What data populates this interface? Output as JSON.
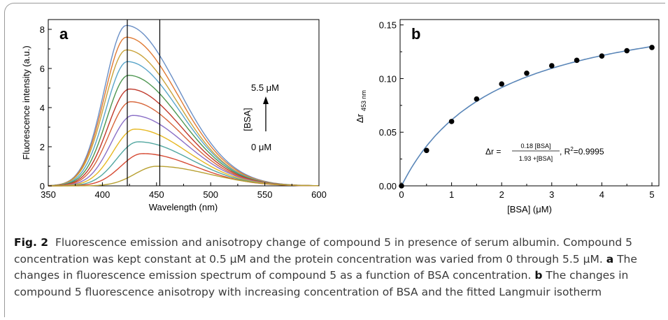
{
  "colors": {
    "fit_line": "#5a86b8",
    "marker": "#000000",
    "spectra": [
      "#6a8fc6",
      "#e07a33",
      "#c9a33a",
      "#5aa5c9",
      "#4d9650",
      "#c0392b",
      "#d7653a",
      "#8a6fc7",
      "#e6b822",
      "#52a7a0",
      "#d64a33",
      "#b8a031",
      "#5a82c0"
    ]
  },
  "charts": [
    {
      "panel_label": "a",
      "ylabel": "Fluorescence intensity (a.u.)",
      "xlabel": "Wavelength (nm)",
      "xticks": [
        "350",
        "400",
        "450",
        "500",
        "550",
        "600"
      ],
      "yticks": [
        "0",
        "2",
        "4",
        "6",
        "8"
      ],
      "annotation": {
        "top": "5.5 μM",
        "middle": "[BSA]",
        "bottom": "0 μM"
      }
    },
    {
      "panel_label": "b",
      "ylabel": "Δr",
      "ylabel_sub": "453 nm",
      "xlabel": "[BSA] (μM)",
      "xticks": [
        "0",
        "1",
        "2",
        "3",
        "4",
        "5"
      ],
      "yticks": [
        "0.00",
        "0.05",
        "0.10",
        "0.15"
      ],
      "equation": {
        "lhs": "Δr =",
        "numerator": "0.18 [BSA]",
        "denominator": "1.93 +[BSA]",
        "r2_label": ", R",
        "r2_sup": "2",
        "r2_value": "=0.9995"
      }
    }
  ],
  "chart_data": [
    {
      "type": "line",
      "xlim": [
        350,
        600
      ],
      "ylim": [
        0,
        8.5
      ],
      "x": [
        350,
        360,
        370,
        380,
        390,
        400,
        410,
        420,
        430,
        440,
        450,
        460,
        470,
        480,
        490,
        500,
        520,
        540,
        560,
        580,
        600
      ],
      "vertical_lines_x": [
        423,
        453
      ],
      "series": [
        {
          "peak_x": 422,
          "peak_y": 8.2
        },
        {
          "peak_x": 422,
          "peak_y": 7.6
        },
        {
          "peak_x": 422,
          "peak_y": 6.95
        },
        {
          "peak_x": 423,
          "peak_y": 6.35
        },
        {
          "peak_x": 424,
          "peak_y": 5.65
        },
        {
          "peak_x": 425,
          "peak_y": 4.95
        },
        {
          "peak_x": 426,
          "peak_y": 4.3
        },
        {
          "peak_x": 428,
          "peak_y": 3.6
        },
        {
          "peak_x": 430,
          "peak_y": 2.9
        },
        {
          "peak_x": 433,
          "peak_y": 2.25
        },
        {
          "peak_x": 437,
          "peak_y": 1.65
        },
        {
          "peak_x": 450,
          "peak_y": 1.0
        }
      ]
    },
    {
      "type": "scatter",
      "xlim": [
        0,
        5
      ],
      "ylim": [
        0,
        0.155
      ],
      "x": [
        0,
        0.5,
        1,
        1.5,
        2,
        2.5,
        3,
        3.5,
        4,
        4.5,
        5
      ],
      "values": [
        0.0,
        0.033,
        0.06,
        0.081,
        0.095,
        0.105,
        0.112,
        0.117,
        0.121,
        0.126,
        0.129
      ],
      "fit": {
        "model": "langmuir",
        "rmax": 0.18,
        "kd": 1.93
      }
    }
  ],
  "caption": {
    "fig_label": "Fig. 2",
    "title": "Fluorescence emission and anisotropy change of compound 5 in presence of serum albumin. Compound 5 concentration was kept constant at 0.5 μM and the protein concentration was varied from 0 through 5.5 μM.",
    "part_a_label": "a",
    "part_a": "The changes in fluorescence emission spectrum of compound 5 as a function of BSA concentration.",
    "part_b_label": "b",
    "part_b": "The changes in compound 5 fluorescence anisotropy with increasing concentration of BSA and the fitted Langmuir isotherm"
  }
}
